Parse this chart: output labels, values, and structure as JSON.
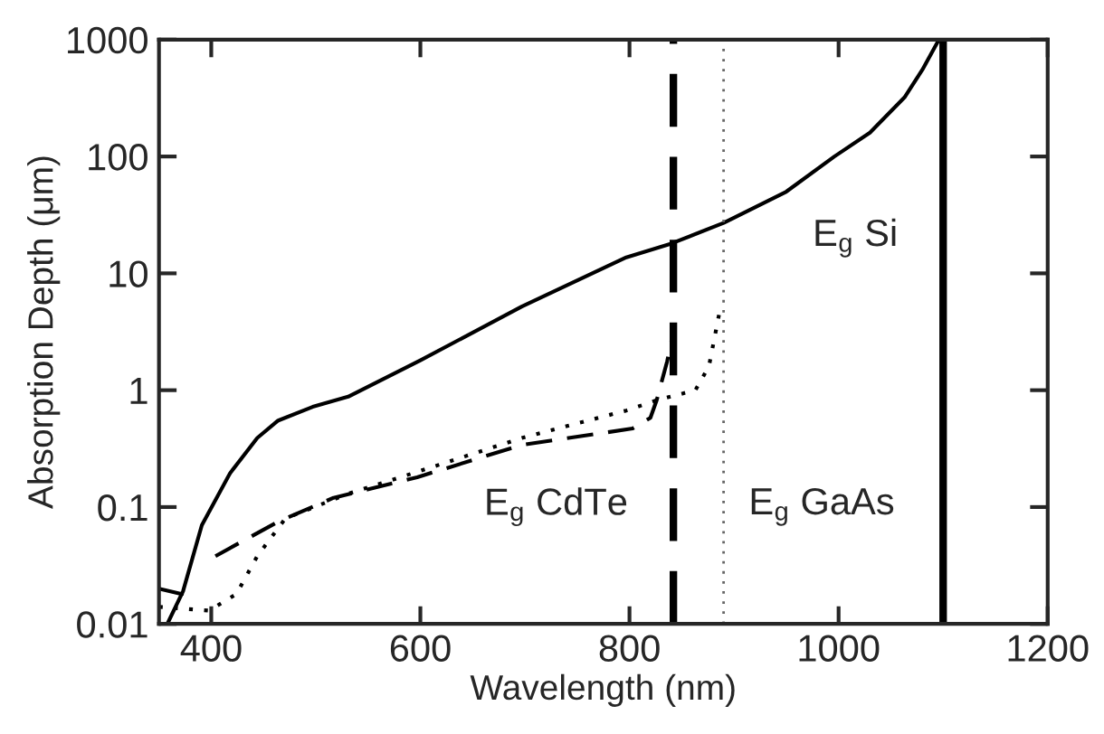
{
  "chart_data": {
    "type": "line",
    "xlabel": "Wavelength (nm)",
    "ylabel": "Absorption Depth (μm)",
    "log": "y",
    "xlim": [
      350,
      1200
    ],
    "xticks": [
      400,
      600,
      800,
      1000,
      1200
    ],
    "ylim": [
      0.01,
      1000
    ],
    "yticks": [
      0.01,
      0.1,
      1,
      10,
      100,
      1000
    ],
    "grid": false,
    "marker": "none",
    "series": [
      {
        "color": "#000000",
        "line_style": "solid",
        "x": [
          358,
          373,
          391,
          418,
          444,
          464,
          497,
          531,
          600,
          697,
          797,
          840,
          890,
          950,
          996,
          1030,
          1063,
          1080,
          1096
        ],
        "values": [
          0.01,
          0.019,
          0.07,
          0.195,
          0.39,
          0.55,
          0.72,
          0.88,
          1.8,
          5.2,
          13.7,
          18,
          27,
          50,
          100,
          160,
          320,
          550,
          1000
        ]
      },
      {
        "color": "#000000",
        "line_style": "solid",
        "x": [
          350,
          372
        ],
        "values": [
          0.02,
          0.018
        ]
      },
      {
        "color": "#000000",
        "line_style": "dashed",
        "x": [
          404,
          464,
          517,
          597,
          697,
          803,
          820,
          826,
          836,
          840
        ],
        "values": [
          0.038,
          0.075,
          0.12,
          0.18,
          0.34,
          0.47,
          0.58,
          0.82,
          1.76,
          2.6
        ]
      },
      {
        "color": "#000000",
        "line_style": "dotted",
        "x": [
          350,
          398,
          424,
          444,
          471,
          531,
          597,
          697,
          797,
          826,
          863,
          876,
          886
        ],
        "values": [
          0.014,
          0.013,
          0.018,
          0.038,
          0.08,
          0.13,
          0.2,
          0.39,
          0.67,
          0.82,
          1.0,
          1.6,
          4.6
        ]
      }
    ],
    "ref_lines": [
      {
        "axis": "x",
        "value": 842,
        "color": "#000000",
        "line_style": "dashed"
      },
      {
        "axis": "x",
        "value": 890,
        "color": "#666666",
        "line_style": "dotted"
      },
      {
        "axis": "x",
        "value": 1100,
        "color": "#000000",
        "line_style": "solid"
      }
    ],
    "annotations": [
      {
        "text": "E$_{g}$ CdTe",
        "x": 842,
        "y": 0.1
      },
      {
        "text": "E$_{g}$ GaAs",
        "x": 890,
        "y": 0.1
      },
      {
        "text": "E$_{g}$ Si",
        "x": 1100,
        "y": 20
      }
    ]
  }
}
